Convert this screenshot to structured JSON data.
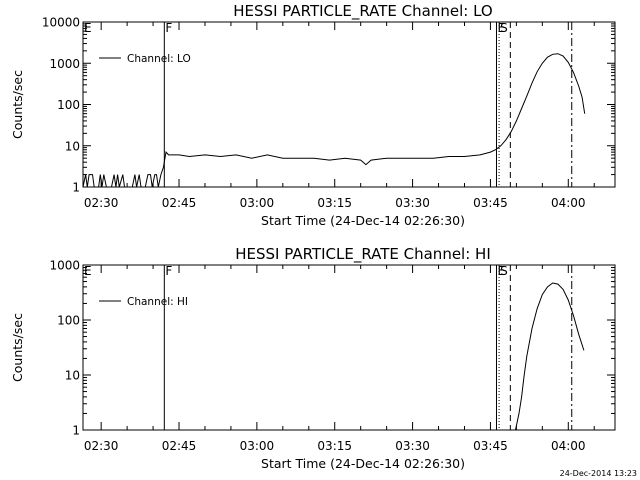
{
  "footer_timestamp": "24-Dec-2014 13:23",
  "chart_data": [
    {
      "type": "line",
      "title": "HESSI PARTICLE_RATE Channel: LO",
      "xlabel": "Start Time (24-Dec-14 02:26:30)",
      "ylabel": "Counts/sec",
      "y_scale": "log",
      "ylim": [
        1,
        10000
      ],
      "xlim": [
        "02:26:30",
        "04:09:00"
      ],
      "x_ticks": [
        "02:30",
        "02:45",
        "03:00",
        "03:15",
        "03:30",
        "03:45",
        "04:00"
      ],
      "y_ticks": [
        "1",
        "10",
        "100",
        "1000",
        "10000"
      ],
      "legend": {
        "label": "Channel: LO",
        "position": "top-left"
      },
      "markers": [
        {
          "label": "E",
          "time": "02:26:30",
          "style": "solid"
        },
        {
          "label": "F",
          "time": "02:42:10",
          "style": "solid"
        },
        {
          "label": "E",
          "time": "03:46:10",
          "style": "solid"
        },
        {
          "label": "S",
          "time": "03:46:40",
          "style": "dotted"
        },
        {
          "label": "",
          "time": "03:48:50",
          "style": "dashed"
        },
        {
          "label": "",
          "time": "04:00:40",
          "style": "dashdot"
        }
      ],
      "series": [
        {
          "name": "Channel: LO",
          "segments": [
            [
              [
                "02:26:30",
                1
              ],
              [
                "02:27:00",
                2
              ],
              [
                "02:27:20",
                1
              ],
              [
                "02:27:40",
                2
              ],
              [
                "02:28:20",
                2
              ],
              [
                "02:28:40",
                1
              ],
              [
                "02:29:30",
                1
              ],
              [
                "02:29:50",
                2
              ],
              [
                "02:30:10",
                1
              ],
              [
                "02:30:30",
                2
              ],
              [
                "02:31:00",
                1
              ],
              [
                "02:32:00",
                1
              ],
              [
                "02:32:30",
                2
              ],
              [
                "02:32:50",
                1
              ],
              [
                "02:33:10",
                2
              ],
              [
                "02:33:30",
                1
              ],
              [
                "02:34:10",
                2
              ],
              [
                "02:34:30",
                1
              ],
              [
                "02:36:00",
                1
              ],
              [
                "02:36:30",
                2
              ],
              [
                "02:36:50",
                1
              ],
              [
                "02:37:20",
                2
              ],
              [
                "02:37:40",
                1
              ],
              [
                "02:38:30",
                1
              ],
              [
                "02:39:00",
                2
              ],
              [
                "02:39:30",
                2
              ],
              [
                "02:39:50",
                1
              ],
              [
                "02:40:20",
                2
              ],
              [
                "02:40:40",
                2
              ],
              [
                "02:41:00",
                1
              ],
              [
                "02:41:30",
                2
              ],
              [
                "02:42:00",
                3
              ],
              [
                "02:42:30",
                7
              ],
              [
                "02:43:00",
                6
              ],
              [
                "02:45:00",
                6
              ],
              [
                "02:47:00",
                5.5
              ],
              [
                "02:50:00",
                6
              ],
              [
                "02:53:00",
                5.5
              ],
              [
                "02:56:00",
                6
              ],
              [
                "02:59:00",
                5
              ],
              [
                "03:02:00",
                6
              ],
              [
                "03:05:00",
                5
              ],
              [
                "03:08:00",
                5
              ],
              [
                "03:11:00",
                5
              ],
              [
                "03:14:00",
                4.5
              ],
              [
                "03:17:00",
                5
              ],
              [
                "03:20:00",
                4.5
              ],
              [
                "03:21:00",
                3.5
              ],
              [
                "03:22:00",
                4.5
              ],
              [
                "03:25:00",
                5
              ],
              [
                "03:28:00",
                5
              ],
              [
                "03:31:00",
                5
              ],
              [
                "03:34:00",
                5
              ],
              [
                "03:37:00",
                5.5
              ],
              [
                "03:40:00",
                5.5
              ],
              [
                "03:43:00",
                6
              ],
              [
                "03:45:00",
                7
              ],
              [
                "03:46:00",
                8
              ],
              [
                "03:47:00",
                10
              ],
              [
                "03:48:00",
                14
              ],
              [
                "03:49:00",
                22
              ],
              [
                "03:50:00",
                40
              ],
              [
                "03:51:00",
                80
              ],
              [
                "03:52:00",
                160
              ],
              [
                "03:53:00",
                330
              ],
              [
                "03:54:00",
                620
              ],
              [
                "03:55:00",
                1000
              ],
              [
                "03:56:00",
                1400
              ],
              [
                "03:57:00",
                1650
              ],
              [
                "03:58:00",
                1700
              ],
              [
                "03:59:00",
                1500
              ],
              [
                "04:00:00",
                1050
              ],
              [
                "04:01:00",
                600
              ],
              [
                "04:02:00",
                280
              ],
              [
                "04:02:40",
                150
              ],
              [
                "04:03:10",
                60
              ]
            ]
          ]
        }
      ]
    },
    {
      "type": "line",
      "title": "HESSI PARTICLE_RATE Channel: HI",
      "xlabel": "Start Time (24-Dec-14 02:26:30)",
      "ylabel": "Counts/sec",
      "y_scale": "log",
      "ylim": [
        1,
        1000
      ],
      "xlim": [
        "02:26:30",
        "04:09:00"
      ],
      "x_ticks": [
        "02:30",
        "02:45",
        "03:00",
        "03:15",
        "03:30",
        "03:45",
        "04:00"
      ],
      "y_ticks": [
        "1",
        "10",
        "100",
        "1000"
      ],
      "legend": {
        "label": "Channel: HI",
        "position": "top-left"
      },
      "markers": [
        {
          "label": "E",
          "time": "02:26:30",
          "style": "solid"
        },
        {
          "label": "F",
          "time": "02:42:10",
          "style": "solid"
        },
        {
          "label": "E",
          "time": "03:46:10",
          "style": "solid"
        },
        {
          "label": "S",
          "time": "03:46:40",
          "style": "dotted"
        },
        {
          "label": "",
          "time": "03:48:50",
          "style": "dashed"
        },
        {
          "label": "",
          "time": "04:00:40",
          "style": "dashdot"
        }
      ],
      "series": [
        {
          "name": "Channel: HI",
          "segments": [
            [
              [
                "03:49:50",
                1
              ],
              [
                "03:50:30",
                2
              ],
              [
                "03:51:00",
                4
              ],
              [
                "03:51:30",
                10
              ],
              [
                "03:52:00",
                22
              ],
              [
                "03:53:00",
                70
              ],
              [
                "03:54:00",
                160
              ],
              [
                "03:55:00",
                290
              ],
              [
                "03:56:00",
                400
              ],
              [
                "03:57:00",
                470
              ],
              [
                "03:58:00",
                450
              ],
              [
                "03:59:00",
                360
              ],
              [
                "04:00:00",
                230
              ],
              [
                "04:01:00",
                120
              ],
              [
                "04:02:00",
                55
              ],
              [
                "04:03:00",
                28
              ]
            ]
          ]
        }
      ]
    }
  ]
}
